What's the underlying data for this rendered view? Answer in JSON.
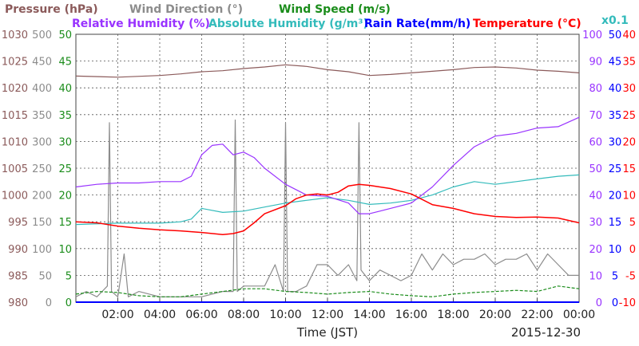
{
  "chart_data": {
    "type": "line",
    "date": "2015-12-30",
    "xlabel": "Time (JST)",
    "x_ticks": [
      "02:00",
      "04:00",
      "06:00",
      "08:00",
      "10:00",
      "12:00",
      "14:00",
      "16:00",
      "18:00",
      "20:00",
      "22:00",
      "00:00"
    ],
    "x_range_hours": [
      0,
      24
    ],
    "grid": true,
    "legend": [
      {
        "label": "Pressure (hPa)",
        "color": "#8B5A5A",
        "row": 1
      },
      {
        "label": "Wind Direction (°)",
        "color": "#8C8C8C",
        "row": 1
      },
      {
        "label": "Wind Speed (m/s)",
        "color": "#1A8C1A",
        "row": 1
      },
      {
        "label": "Relative Humidity (%)",
        "color": "#9933FF",
        "row": 2
      },
      {
        "label": "Absolute Humidity (g/m³)",
        "color": "#33BBBB",
        "row": 2
      },
      {
        "label": "Rain Rate(mm/h)",
        "color": "#0000FF",
        "row": 2
      },
      {
        "label": "Temperature (°C)",
        "color": "#FF0000",
        "row": 2
      }
    ],
    "scale_note": "x0.1",
    "axes": {
      "pressure": {
        "ticks": [
          "1030",
          "1025",
          "1020",
          "1015",
          "1010",
          "1005",
          "1000",
          "995",
          "990",
          "985",
          "980"
        ],
        "range": [
          980,
          1030
        ],
        "color": "#8B5A5A"
      },
      "wind_direction": {
        "ticks": [
          "500",
          "450",
          "400",
          "350",
          "300",
          "250",
          "200",
          "150",
          "100",
          "50",
          "0"
        ],
        "range": [
          0,
          500
        ],
        "color": "#8C8C8C"
      },
      "wind_speed": {
        "ticks": [
          "50",
          "45",
          "40",
          "35",
          "30",
          "25",
          "20",
          "15",
          "10",
          "5",
          "0"
        ],
        "range": [
          0,
          50
        ],
        "color": "#1A8C1A"
      },
      "humidity": {
        "ticks": [
          "100",
          "90",
          "80",
          "70",
          "60",
          "50",
          "40",
          "30",
          "20",
          "10",
          "0"
        ],
        "range": [
          0,
          100
        ],
        "color": "#9933FF"
      },
      "rain": {
        "ticks": [
          "50",
          "45",
          "40",
          "35",
          "30",
          "25",
          "20",
          "15",
          "10",
          "5",
          "0"
        ],
        "range": [
          0,
          50
        ],
        "color": "#0000FF"
      },
      "temperature": {
        "ticks": [
          "40",
          "35",
          "30",
          "25",
          "20",
          "15",
          "10",
          "5",
          "0",
          "-5",
          "-10"
        ],
        "range": [
          -10,
          40
        ],
        "color": "#FF0000"
      }
    },
    "series": [
      {
        "name": "Pressure (hPa)",
        "color": "#8B5A5A",
        "axis": "pressure",
        "x": [
          0,
          2,
          4,
          5,
          6,
          7,
          8,
          9,
          10,
          11,
          12,
          13,
          14,
          15,
          16,
          17,
          18,
          19,
          20,
          21,
          22,
          23,
          24
        ],
        "y": [
          1022.2,
          1022.0,
          1022.3,
          1022.6,
          1023.0,
          1023.2,
          1023.6,
          1023.9,
          1024.3,
          1024.0,
          1023.4,
          1023.0,
          1022.3,
          1022.5,
          1022.8,
          1023.1,
          1023.4,
          1023.8,
          1023.9,
          1023.7,
          1023.3,
          1023.1,
          1022.8
        ]
      },
      {
        "name": "Wind Direction (°)",
        "color": "#8C8C8C",
        "axis": "wind_direction",
        "x": [
          0,
          0.5,
          1,
          1.5,
          1.6,
          1.7,
          2,
          2.3,
          2.5,
          3,
          4,
          6,
          7,
          7.5,
          7.6,
          7.7,
          8,
          9,
          9.5,
          9.9,
          10,
          10.1,
          10.5,
          11,
          11.5,
          12,
          12.5,
          13,
          13.4,
          13.5,
          13.6,
          14,
          14.5,
          15,
          15.5,
          16,
          16.5,
          17,
          17.5,
          18,
          18.5,
          19,
          19.5,
          20,
          20.5,
          21,
          21.5,
          22,
          22.5,
          23,
          23.5,
          24
        ],
        "y": [
          10,
          20,
          10,
          30,
          335,
          20,
          10,
          90,
          10,
          20,
          10,
          10,
          20,
          20,
          340,
          20,
          30,
          30,
          70,
          20,
          335,
          20,
          20,
          30,
          70,
          70,
          50,
          70,
          40,
          335,
          60,
          40,
          60,
          50,
          40,
          50,
          90,
          60,
          90,
          70,
          80,
          80,
          90,
          70,
          80,
          80,
          90,
          60,
          90,
          70,
          50,
          50
        ]
      },
      {
        "name": "Wind Speed (m/s)",
        "color": "#1A8C1A",
        "axis": "wind_speed",
        "x": [
          0,
          1,
          2,
          3,
          4,
          5,
          6,
          7,
          8,
          9,
          10,
          11,
          12,
          13,
          14,
          15,
          16,
          17,
          18,
          19,
          20,
          21,
          22,
          23,
          24
        ],
        "y": [
          1.5,
          2.0,
          1.8,
          1.2,
          1.0,
          1.0,
          1.5,
          2.0,
          2.5,
          2.5,
          2.0,
          1.8,
          1.5,
          1.8,
          2.0,
          1.5,
          1.2,
          1.0,
          1.5,
          1.8,
          2.0,
          2.2,
          2.0,
          3.0,
          2.5
        ]
      },
      {
        "name": "Relative Humidity (%)",
        "color": "#9933FF",
        "axis": "humidity",
        "x": [
          0,
          1,
          2,
          3,
          4,
          5,
          5.5,
          6,
          6.5,
          7,
          7.5,
          8,
          8.5,
          9,
          10,
          11,
          12,
          13,
          13.5,
          14,
          14.5,
          15,
          16,
          17,
          18,
          19,
          20,
          21,
          22,
          23,
          24
        ],
        "y": [
          43,
          44,
          44.5,
          44.5,
          45,
          45,
          47,
          55,
          58.5,
          59,
          55,
          56,
          54,
          50,
          44,
          40,
          39.5,
          37,
          33,
          33,
          34,
          35,
          37,
          43,
          51,
          58,
          62,
          63,
          65,
          65.5,
          69
        ]
      },
      {
        "name": "Absolute Humidity (g/m³)",
        "color": "#33BBBB",
        "axis": "humidity",
        "x": [
          0,
          2,
          4,
          5,
          5.5,
          6,
          7,
          8,
          9,
          10,
          11,
          12,
          13,
          14,
          15,
          16,
          17,
          18,
          19,
          20,
          21,
          22,
          23,
          24
        ],
        "y": [
          29,
          29.5,
          29.5,
          30,
          31,
          35,
          33.5,
          34,
          35.5,
          37,
          38,
          39,
          38,
          36.5,
          37,
          38,
          40,
          43,
          45,
          44,
          45,
          46,
          47,
          47.5
        ]
      },
      {
        "name": "Rain Rate(mm/h)",
        "color": "#0000FF",
        "axis": "rain",
        "x": [
          0,
          24
        ],
        "y": [
          0,
          0
        ]
      },
      {
        "name": "Temperature (°C)",
        "color": "#FF0000",
        "axis": "temperature",
        "x": [
          0,
          1,
          2,
          3,
          4,
          5,
          6,
          7,
          7.5,
          8,
          8.5,
          9,
          10,
          10.5,
          11,
          11.5,
          12,
          12.5,
          13,
          13.5,
          14,
          14.5,
          15,
          16,
          17,
          18,
          19,
          20,
          21,
          22,
          23,
          24
        ],
        "y": [
          5.0,
          4.8,
          4.2,
          3.8,
          3.5,
          3.3,
          3.0,
          2.6,
          2.8,
          3.3,
          4.8,
          6.5,
          8.0,
          9.3,
          10.0,
          10.2,
          10.0,
          10.5,
          11.7,
          12.0,
          11.8,
          11.5,
          11.2,
          10.2,
          8.2,
          7.5,
          6.5,
          6.0,
          5.8,
          5.9,
          5.7,
          4.8
        ]
      }
    ]
  }
}
